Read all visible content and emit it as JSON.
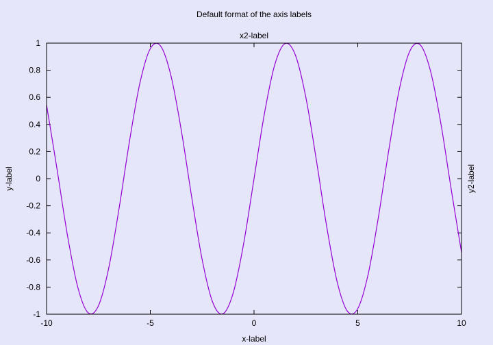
{
  "chart_data": {
    "type": "line",
    "title": "Default format of the axis labels",
    "xlabel": "x-label",
    "ylabel": "y-label",
    "x2label": "x2-label",
    "y2label": "y2-label",
    "xlim": [
      -10,
      10
    ],
    "ylim": [
      -1,
      1
    ],
    "xticks": [
      -10,
      -5,
      0,
      5,
      10
    ],
    "xtick_labels": [
      "-10",
      "-5",
      "0",
      "5",
      "10"
    ],
    "yticks": [
      -1,
      -0.8,
      -0.6,
      -0.4,
      -0.2,
      0,
      0.2,
      0.4,
      0.6,
      0.8,
      1
    ],
    "ytick_labels": [
      "-1",
      "-0.8",
      "-0.6",
      "-0.4",
      "-0.2",
      "0",
      "0.2",
      "0.4",
      "0.6",
      "0.8",
      "1"
    ],
    "grid": false,
    "legend": "none",
    "series": [
      {
        "function": "sin(x)",
        "color": "#9400d3",
        "x": [
          -10,
          -9.5,
          -9,
          -8.5,
          -8,
          -7.5,
          -7,
          -6.5,
          -6,
          -5.5,
          -5,
          -4.5,
          -4,
          -3.5,
          -3,
          -2.5,
          -2,
          -1.5,
          -1,
          -0.5,
          0,
          0.5,
          1,
          1.5,
          2,
          2.5,
          3,
          3.5,
          4,
          4.5,
          5,
          5.5,
          6,
          6.5,
          7,
          7.5,
          8,
          8.5,
          9,
          9.5,
          10
        ],
        "y": [
          0.544,
          0.075,
          -0.412,
          -0.798,
          -0.989,
          -0.938,
          -0.657,
          -0.215,
          0.279,
          0.706,
          0.959,
          0.978,
          0.757,
          0.351,
          -0.141,
          -0.598,
          -0.909,
          -0.997,
          -0.841,
          -0.479,
          0,
          0.479,
          0.841,
          0.997,
          0.909,
          0.598,
          0.141,
          -0.351,
          -0.757,
          -0.978,
          -0.959,
          -0.706,
          -0.279,
          0.215,
          0.657,
          0.938,
          0.989,
          0.798,
          0.412,
          -0.075,
          -0.544
        ]
      }
    ]
  },
  "colors": {
    "background": "#e6e6fa",
    "plot_background": "#e6e6fa",
    "axes": "#000000"
  }
}
